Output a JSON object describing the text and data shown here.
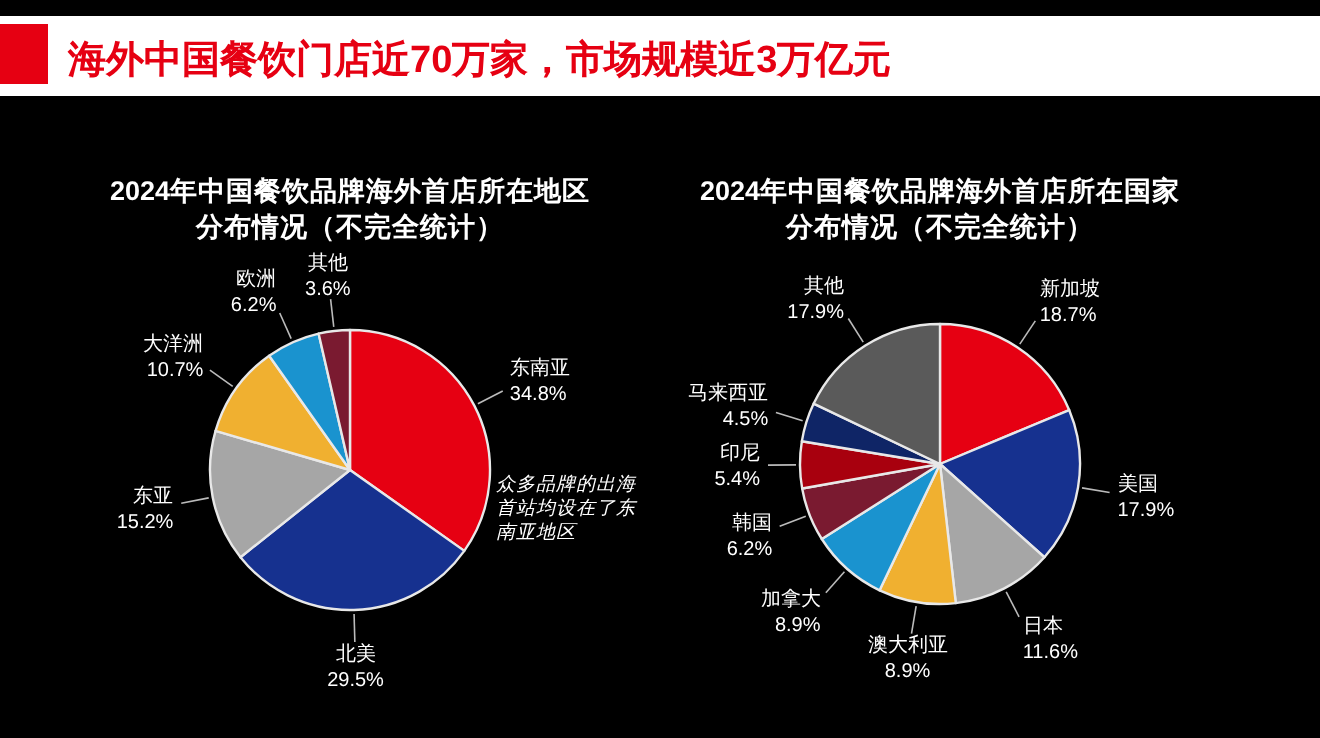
{
  "chart_data": [
    {
      "type": "other",
      "title": "海外中国餐饮门店近70万家，市场规模近3万亿元"
    },
    {
      "type": "pie",
      "title": "2024年中国餐饮品牌海外首店所在地区分布情况（不完全统计）",
      "value_labels": [
        "34.8%",
        "29.5%",
        "15.2%",
        "10.7%",
        "6.2%",
        "3.6%"
      ],
      "categories": [
        "东南亚",
        "北美",
        "东亚",
        "大洋洲",
        "欧洲",
        "其他"
      ],
      "values": [
        34.8,
        29.5,
        15.2,
        10.7,
        6.2,
        3.6
      ],
      "colors": [
        "#e60012",
        "#16318f",
        "#a6a6a6",
        "#f0b030",
        "#1a93cf",
        "#7a1a30"
      ],
      "annotations": [
        "众多品牌的出海首站均设在了东南亚地区"
      ]
    },
    {
      "type": "pie",
      "title": "2024年中国餐饮品牌海外首店所在国家分布情况（不完全统计）",
      "value_labels": [
        "18.7%",
        "17.9%",
        "11.6%",
        "8.9%",
        "8.9%",
        "6.2%",
        "5.4%",
        "4.5%",
        "17.9%"
      ],
      "categories": [
        "新加坡",
        "美国",
        "日本",
        "澳大利亚",
        "加拿大",
        "韩国",
        "印尼",
        "马来西亚",
        "其他"
      ],
      "values": [
        18.7,
        17.9,
        11.6,
        8.9,
        8.9,
        6.2,
        5.4,
        4.5,
        17.9
      ],
      "colors": [
        "#e60012",
        "#16318f",
        "#a6a6a6",
        "#f0b030",
        "#1a93cf",
        "#7a1a30",
        "#a8000e",
        "#0f2566",
        "#5a5a5a"
      ]
    }
  ]
}
